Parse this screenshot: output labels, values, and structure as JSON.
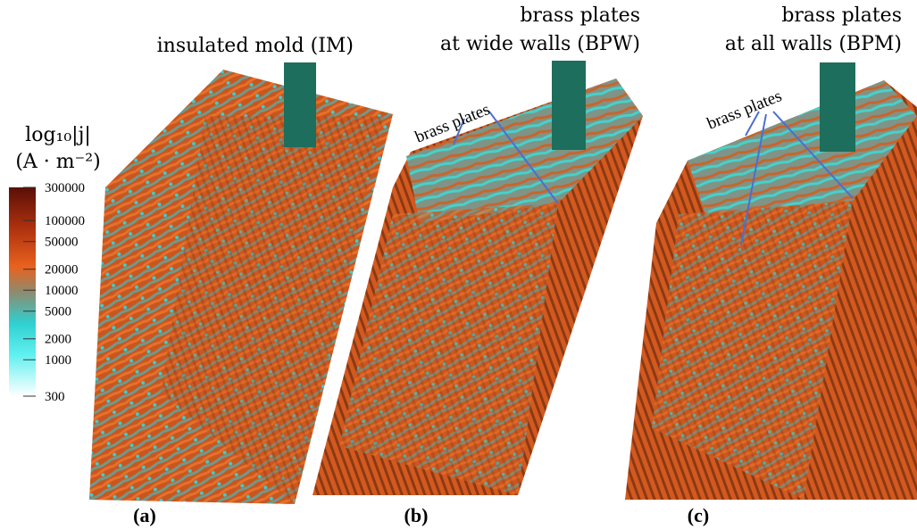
{
  "colorbar": {
    "title": [
      "log₁₀|j|",
      "(A · m⁻²)"
    ],
    "scale": "log",
    "lim": [
      300,
      300000
    ],
    "ticks": [
      300000,
      100000,
      50000,
      20000,
      10000,
      5000,
      2000,
      1000,
      300
    ]
  },
  "panels": [
    {
      "title": [
        "insulated mold (IM)"
      ],
      "caption": "(a)"
    },
    {
      "title": [
        "brass plates",
        "at wide walls (BPW)"
      ],
      "annotation": "brass plates",
      "caption": "(b)"
    },
    {
      "title": [
        "brass plates",
        "at all walls (BPM)"
      ],
      "annotation": "brass plates",
      "caption": "(c)"
    }
  ]
}
